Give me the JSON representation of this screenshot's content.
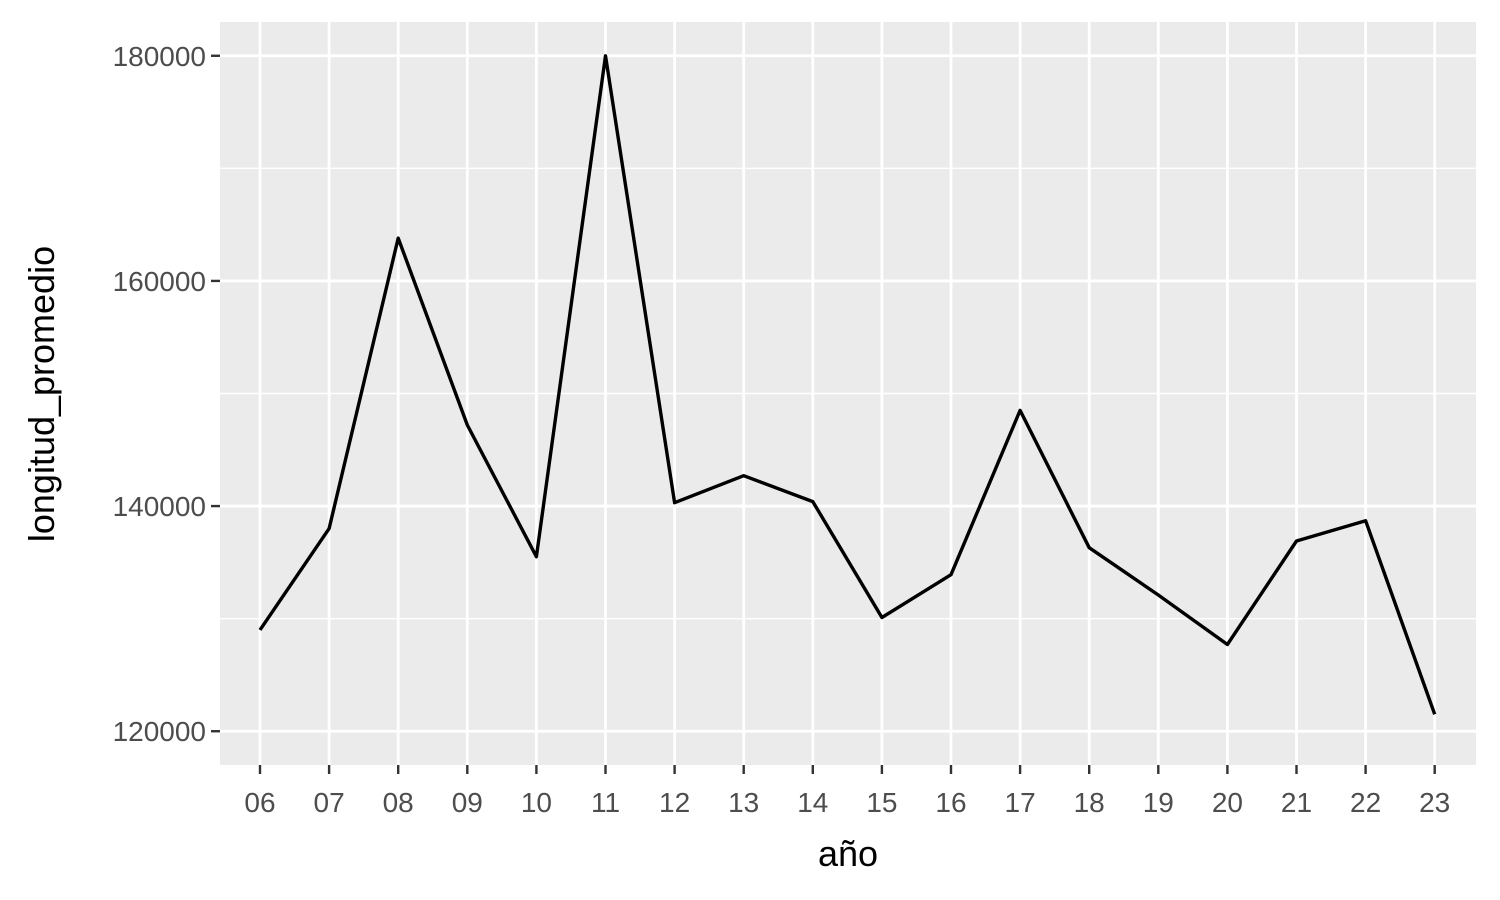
{
  "chart_data": {
    "type": "line",
    "title": "",
    "xlabel": "año",
    "ylabel": "longitud_promedio",
    "x": [
      "06",
      "07",
      "08",
      "09",
      "10",
      "11",
      "12",
      "13",
      "14",
      "15",
      "16",
      "17",
      "18",
      "19",
      "20",
      "21",
      "22",
      "23"
    ],
    "series": [
      {
        "values": [
          129000,
          138000,
          163800,
          147200,
          135500,
          180000,
          140300,
          142700,
          140400,
          130100,
          133900,
          148500,
          136300,
          132100,
          127700,
          136900,
          138700,
          121500
        ]
      }
    ],
    "yticks": [
      120000,
      140000,
      160000,
      180000
    ],
    "ytick_labels": [
      "120000",
      "140000",
      "160000",
      "180000"
    ],
    "ylim": [
      117000,
      183000
    ],
    "grid": true,
    "colors": {
      "panel_background": "#EBEBEB",
      "grid": "#FFFFFF",
      "line": "#000000",
      "tick_text": "#4D4D4D",
      "axis_text": "#000000"
    }
  }
}
